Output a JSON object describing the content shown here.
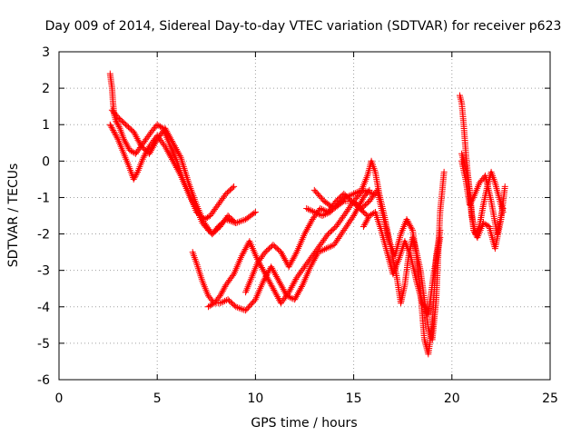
{
  "chart_data": {
    "type": "scatter",
    "title": "Day 009 of 2014, Sidereal Day-to-day VTEC variation (SDTVAR) for receiver p623",
    "xlabel": "GPS time / hours",
    "ylabel": "SDTVAR / TECUs",
    "xlim": [
      0,
      25
    ],
    "ylim": [
      -6,
      3
    ],
    "xticks": [
      0,
      5,
      10,
      15,
      20,
      25
    ],
    "xtick_labels": [
      "0",
      "5",
      "10",
      "15",
      "20",
      "25"
    ],
    "yticks": [
      -6,
      -5,
      -4,
      -3,
      -2,
      -1,
      0,
      1,
      2,
      3
    ],
    "ytick_labels": [
      "-6",
      "-5",
      "-4",
      "-3",
      "-2",
      "-1",
      "0",
      "1",
      "2",
      "3"
    ],
    "grid": true,
    "legend": "none",
    "colors": {
      "series": "#ff0000",
      "grid": "#a0a0a0",
      "axes": "#000000"
    },
    "series": [
      {
        "name": "trace-1",
        "marker": "plus",
        "x": [
          2.6,
          2.7,
          2.75,
          2.8,
          2.9,
          3.1,
          3.3,
          3.6,
          3.9,
          4.3,
          4.7,
          5.0,
          5.3,
          5.6,
          6.0,
          6.3,
          6.7,
          7.0,
          7.4,
          7.7,
          8.1,
          8.5,
          8.9
        ],
        "y": [
          2.4,
          2.0,
          1.6,
          1.3,
          1.1,
          0.9,
          0.6,
          0.3,
          0.2,
          0.5,
          0.8,
          1.0,
          0.9,
          0.5,
          0.0,
          -0.5,
          -1.0,
          -1.4,
          -1.6,
          -1.5,
          -1.2,
          -0.9,
          -0.7
        ]
      },
      {
        "name": "trace-2",
        "marker": "plus",
        "x": [
          2.6,
          2.8,
          3.0,
          3.3,
          3.6,
          3.8,
          4.0,
          4.3,
          4.6,
          5.0,
          5.4,
          5.8,
          6.2,
          6.6,
          7.0,
          7.3,
          7.6,
          7.8,
          8.1,
          8.5,
          9.0,
          9.5,
          10.0
        ],
        "y": [
          1.0,
          0.8,
          0.6,
          0.2,
          -0.2,
          -0.5,
          -0.3,
          0.1,
          0.4,
          0.7,
          0.4,
          0.0,
          -0.4,
          -0.9,
          -1.3,
          -1.7,
          -1.9,
          -2.0,
          -1.8,
          -1.6,
          -1.7,
          -1.6,
          -1.4
        ]
      },
      {
        "name": "trace-3",
        "marker": "plus",
        "x": [
          2.7,
          3.0,
          3.4,
          3.8,
          4.2,
          4.6,
          5.0,
          5.4,
          5.8,
          6.2,
          6.6,
          7.0,
          7.4,
          7.8,
          8.2,
          8.6,
          9.0
        ],
        "y": [
          1.4,
          1.2,
          1.0,
          0.8,
          0.4,
          0.2,
          0.6,
          0.9,
          0.5,
          0.1,
          -0.6,
          -1.2,
          -1.7,
          -2.0,
          -1.8,
          -1.5,
          -1.7
        ]
      },
      {
        "name": "trace-4",
        "marker": "plus",
        "x": [
          6.8,
          7.0,
          7.3,
          7.6,
          7.9,
          8.2,
          8.6,
          9.0,
          9.5,
          10.0,
          10.4,
          10.8,
          11.2,
          11.6,
          12.0,
          12.4,
          12.8,
          13.2,
          13.6,
          14.0,
          14.5,
          15.0,
          15.5,
          15.8
        ],
        "y": [
          -2.5,
          -2.8,
          -3.3,
          -3.7,
          -3.9,
          -3.9,
          -3.8,
          -4.0,
          -4.1,
          -3.8,
          -3.3,
          -2.9,
          -3.3,
          -3.7,
          -3.8,
          -3.4,
          -2.9,
          -2.5,
          -2.4,
          -2.3,
          -1.9,
          -1.5,
          -1.0,
          -0.8
        ]
      },
      {
        "name": "trace-5",
        "marker": "plus",
        "x": [
          7.6,
          7.9,
          8.2,
          8.5,
          8.9,
          9.3,
          9.7,
          10.1,
          10.5,
          10.9,
          11.3,
          11.7,
          12.1,
          12.5,
          12.9,
          13.3,
          13.7,
          14.1,
          14.5,
          15.0,
          15.5,
          16.0
        ],
        "y": [
          -4.0,
          -3.9,
          -3.7,
          -3.4,
          -3.1,
          -2.6,
          -2.2,
          -2.7,
          -3.1,
          -3.5,
          -3.9,
          -3.6,
          -3.2,
          -2.9,
          -2.6,
          -2.3,
          -2.0,
          -1.8,
          -1.5,
          -1.1,
          -0.8,
          -0.9
        ]
      },
      {
        "name": "trace-6",
        "marker": "plus",
        "x": [
          9.5,
          9.8,
          10.1,
          10.5,
          10.9,
          11.3,
          11.7,
          12.1,
          12.5,
          12.9,
          13.3,
          13.7,
          14.1,
          14.5,
          14.9,
          15.3,
          15.7
        ],
        "y": [
          -3.6,
          -3.2,
          -2.8,
          -2.5,
          -2.3,
          -2.5,
          -2.9,
          -2.5,
          -2.0,
          -1.6,
          -1.3,
          -1.4,
          -1.1,
          -0.9,
          -1.1,
          -1.3,
          -1.5
        ]
      },
      {
        "name": "trace-7",
        "marker": "plus",
        "x": [
          12.6,
          13.0,
          13.4,
          13.8,
          14.2,
          14.6,
          15.0,
          15.4,
          15.7,
          15.9,
          16.1,
          16.3,
          16.6,
          16.9,
          17.2,
          17.4,
          17.6,
          17.8,
          18.0,
          18.2,
          18.4,
          18.6,
          18.8,
          19.0,
          19.2,
          19.4,
          19.6
        ],
        "y": [
          -1.3,
          -1.4,
          -1.5,
          -1.4,
          -1.2,
          -1.0,
          -0.9,
          -0.8,
          -0.4,
          0.0,
          -0.3,
          -0.9,
          -1.6,
          -2.4,
          -3.2,
          -3.9,
          -3.4,
          -2.6,
          -2.1,
          -2.5,
          -3.0,
          -3.8,
          -4.6,
          -4.9,
          -3.8,
          -1.4,
          -0.3
        ]
      },
      {
        "name": "trace-8",
        "marker": "plus",
        "x": [
          13.0,
          13.5,
          14.0,
          14.5,
          15.0,
          15.4,
          15.8,
          16.2,
          16.5,
          16.8,
          17.1,
          17.4,
          17.7,
          18.0,
          18.2,
          18.4,
          18.6,
          18.8,
          19.0,
          19.2,
          19.4
        ],
        "y": [
          -0.8,
          -1.1,
          -1.3,
          -1.1,
          -1.1,
          -1.3,
          -1.1,
          -0.8,
          -1.5,
          -2.2,
          -2.6,
          -2.0,
          -1.6,
          -1.9,
          -2.6,
          -3.6,
          -4.9,
          -5.3,
          -4.5,
          -2.6,
          -1.9
        ]
      },
      {
        "name": "trace-9",
        "marker": "plus",
        "x": [
          15.5,
          15.8,
          16.1,
          16.4,
          16.7,
          17.0,
          17.3,
          17.6,
          17.9,
          18.2,
          18.5,
          18.8,
          19.1,
          19.4
        ],
        "y": [
          -1.8,
          -1.5,
          -1.4,
          -1.9,
          -2.5,
          -3.1,
          -2.7,
          -2.2,
          -2.6,
          -3.3,
          -3.9,
          -4.2,
          -3.0,
          -2.1
        ]
      },
      {
        "name": "trace-10",
        "marker": "plus",
        "x": [
          20.4,
          20.5,
          20.6,
          20.7,
          20.8,
          20.9,
          21.0,
          21.2,
          21.4,
          21.6,
          21.8,
          22.0,
          22.2,
          22.4,
          22.6
        ],
        "y": [
          1.8,
          1.6,
          1.0,
          0.3,
          -0.3,
          -0.8,
          -1.5,
          -2.0,
          -1.8,
          -1.2,
          -0.7,
          -0.3,
          -0.6,
          -1.0,
          -1.4
        ]
      },
      {
        "name": "trace-11",
        "marker": "plus",
        "x": [
          20.5,
          20.7,
          20.9,
          21.1,
          21.3,
          21.6,
          21.9,
          22.2,
          22.5,
          22.7
        ],
        "y": [
          0.2,
          -0.2,
          -0.8,
          -1.9,
          -2.1,
          -1.7,
          -1.8,
          -2.4,
          -1.6,
          -0.7
        ]
      },
      {
        "name": "trace-12",
        "marker": "plus",
        "x": [
          20.5,
          20.7,
          20.9,
          21.1,
          21.4,
          21.7,
          22.0,
          22.3,
          22.6
        ],
        "y": [
          0.0,
          -0.5,
          -1.2,
          -1.0,
          -0.6,
          -0.4,
          -1.1,
          -2.0,
          -1.3
        ]
      }
    ]
  }
}
